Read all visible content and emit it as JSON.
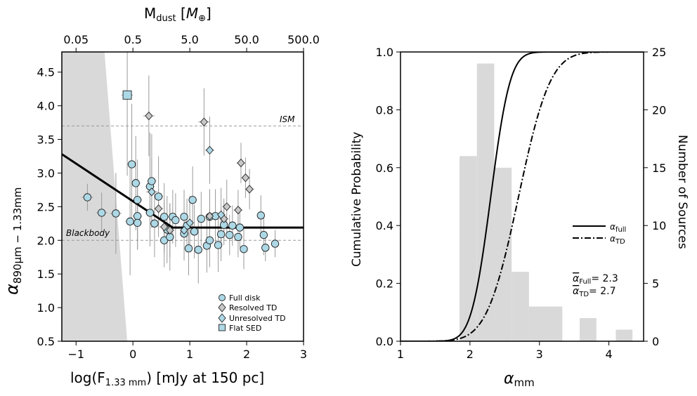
{
  "chart_data": [
    {
      "type": "scatter",
      "xlabel_html": [
        "log(F",
        "1.33 mm",
        ") [mJy at 150 pc]"
      ],
      "ylabel_parts": [
        "α",
        "890μm − 1.33mm"
      ],
      "top_xlabel_parts": [
        "M",
        "dust",
        " [",
        "M",
        "⊕",
        "]"
      ],
      "xlim": [
        -1.25,
        3.0
      ],
      "ylim": [
        0.5,
        4.8
      ],
      "xticks": [
        -1,
        0,
        1,
        2,
        3
      ],
      "xtick_labels": [
        "−1",
        "0",
        "1",
        "2",
        "3"
      ],
      "yticks": [
        0.5,
        1.0,
        1.5,
        2.0,
        2.5,
        3.0,
        3.5,
        4.0,
        4.5
      ],
      "ytick_labels": [
        "0.5",
        "1.0",
        "1.5",
        "2.0",
        "2.5",
        "3.0",
        "3.5",
        "4.0",
        "4.5"
      ],
      "top_ticks": [
        {
          "x": -1.0,
          "label": "0.05"
        },
        {
          "x": 0.0,
          "label": "0.5"
        },
        {
          "x": 1.0,
          "label": "5.0"
        },
        {
          "x": 2.0,
          "label": "50.0"
        },
        {
          "x": 3.0,
          "label": "500.0"
        }
      ],
      "reference_lines": [
        {
          "name": "ISM",
          "label": "ISM",
          "y": 3.7
        },
        {
          "name": "Blackbody",
          "label": "Blackbody",
          "y": 2.0
        }
      ],
      "excluded_region": [
        [
          -1.25,
          4.8
        ],
        [
          -0.5,
          4.8
        ],
        [
          -0.1,
          0.5
        ],
        [
          -1.25,
          0.5
        ]
      ],
      "fit_line": [
        [
          -1.25,
          3.28
        ],
        [
          0.7,
          2.19
        ],
        [
          3.0,
          2.19
        ]
      ],
      "legend": [
        {
          "label": "Full disk",
          "marker": "circle",
          "color": "#add8e6"
        },
        {
          "label": "Resolved TD",
          "marker": "diamond",
          "color": "#c8c8c8"
        },
        {
          "label": "Unresolved TD",
          "marker": "diamond",
          "color": "#add8e6"
        },
        {
          "label": "Flat SED",
          "marker": "square",
          "color": "#add8e6"
        }
      ],
      "series": [
        {
          "name": "Full disk",
          "points": [
            [
              -0.8,
              2.64,
              0.1,
              0.2
            ],
            [
              -0.55,
              2.41,
              0.1,
              0.3
            ],
            [
              -0.3,
              2.4,
              0.1,
              0.6
            ],
            [
              -0.05,
              2.28,
              0.08,
              0.8
            ],
            [
              -0.02,
              3.13,
              0.08,
              0.9
            ],
            [
              0.05,
              2.85,
              0.08,
              0.7
            ],
            [
              0.08,
              2.6,
              0.08,
              0.6
            ],
            [
              0.08,
              2.36,
              0.08,
              0.5
            ],
            [
              0.08,
              2.26,
              0.08,
              0.4
            ],
            [
              0.3,
              2.41,
              0.08,
              0.5
            ],
            [
              0.3,
              2.8,
              0.08,
              0.8
            ],
            [
              0.33,
              2.88,
              0.08,
              0.7
            ],
            [
              0.38,
              2.25,
              0.08,
              0.5
            ],
            [
              0.45,
              2.65,
              0.08,
              0.6
            ],
            [
              0.55,
              2.35,
              0.08,
              0.5
            ],
            [
              0.55,
              2.0,
              0.08,
              0.4
            ],
            [
              0.6,
              2.16,
              0.06,
              0.5
            ],
            [
              0.65,
              2.05,
              0.06,
              0.5
            ],
            [
              0.7,
              2.35,
              0.06,
              0.4
            ],
            [
              0.75,
              2.3,
              0.06,
              0.4
            ],
            [
              0.9,
              2.1,
              0.06,
              0.4
            ],
            [
              0.9,
              2.35,
              0.06,
              0.4
            ],
            [
              0.95,
              2.22,
              0.06,
              0.4
            ],
            [
              0.98,
              1.88,
              0.06,
              0.4
            ],
            [
              1.05,
              2.6,
              0.06,
              0.5
            ],
            [
              1.08,
              2.13,
              0.06,
              0.4
            ],
            [
              1.15,
              1.86,
              0.06,
              0.5
            ],
            [
              1.2,
              2.32,
              0.06,
              0.4
            ],
            [
              1.3,
              1.92,
              0.06,
              0.4
            ],
            [
              1.35,
              2.35,
              0.06,
              0.4
            ],
            [
              1.35,
              2.0,
              0.06,
              0.4
            ],
            [
              1.45,
              2.36,
              0.06,
              0.4
            ],
            [
              1.5,
              1.93,
              0.06,
              0.4
            ],
            [
              1.55,
              2.09,
              0.06,
              0.4
            ],
            [
              1.6,
              2.23,
              0.06,
              0.3
            ],
            [
              1.7,
              2.08,
              0.06,
              0.3
            ],
            [
              1.75,
              2.22,
              0.06,
              0.3
            ],
            [
              1.85,
              2.05,
              0.06,
              0.3
            ],
            [
              1.88,
              2.19,
              0.06,
              0.3
            ],
            [
              1.95,
              1.87,
              0.06,
              0.3
            ],
            [
              2.25,
              2.37,
              0.06,
              0.3
            ],
            [
              2.3,
              2.08,
              0.06,
              0.3
            ],
            [
              2.33,
              1.89,
              0.06,
              0.2
            ],
            [
              2.5,
              1.95,
              0.06,
              0.2
            ]
          ]
        },
        {
          "name": "Resolved TD",
          "points": [
            [
              0.28,
              3.85,
              0.1,
              0.6
            ],
            [
              1.25,
              3.76,
              0.1,
              0.5
            ],
            [
              1.35,
              2.36,
              0.08,
              0.4
            ],
            [
              0.55,
              2.2,
              0.08,
              0.4
            ],
            [
              0.65,
              2.15,
              0.08,
              0.4
            ],
            [
              1.65,
              2.5,
              0.08,
              0.4
            ],
            [
              1.85,
              2.45,
              0.08,
              0.3
            ],
            [
              1.9,
              3.15,
              0.08,
              0.3
            ],
            [
              1.98,
              2.93,
              0.08,
              0.3
            ],
            [
              2.05,
              2.76,
              0.08,
              0.3
            ],
            [
              1.6,
              2.32,
              0.08,
              0.3
            ],
            [
              0.45,
              2.47,
              0.08,
              0.3
            ]
          ]
        },
        {
          "name": "Unresolved TD",
          "points": [
            [
              0.33,
              2.72,
              0.1,
              0.5
            ],
            [
              1.0,
              2.26,
              0.08,
              0.4
            ],
            [
              1.35,
              3.34,
              0.08,
              0.5
            ],
            [
              1.55,
              2.38,
              0.08,
              0.4
            ],
            [
              0.9,
              2.15,
              0.08,
              0.3
            ]
          ]
        },
        {
          "name": "Flat SED",
          "points": [
            [
              -0.1,
              4.16,
              0.1,
              1.2
            ]
          ]
        }
      ]
    },
    {
      "type": "histogram+cdf",
      "xlabel_parts": [
        "α",
        "mm"
      ],
      "ylabel": "Cumulative Probability",
      "ylabel_right": "Number of Sources",
      "xlim": [
        1.0,
        4.5
      ],
      "ylim": [
        0.0,
        1.0
      ],
      "ylim_right": [
        0,
        25
      ],
      "xticks": [
        1,
        2,
        3,
        4
      ],
      "xtick_labels": [
        "1",
        "2",
        "3",
        "4"
      ],
      "yticks": [
        0.0,
        0.2,
        0.4,
        0.6,
        0.8,
        1.0
      ],
      "ytick_labels": [
        "0.0",
        "0.2",
        "0.4",
        "0.6",
        "0.8",
        "1.0"
      ],
      "yticks_right": [
        0,
        5,
        10,
        15,
        20,
        25
      ],
      "yticks_right_labels": [
        "0",
        "5",
        "10",
        "15",
        "20",
        "25"
      ],
      "histogram_bins": [
        {
          "x0": 1.85,
          "x1": 2.1,
          "count": 16
        },
        {
          "x0": 2.1,
          "x1": 2.35,
          "count": 24
        },
        {
          "x0": 2.35,
          "x1": 2.6,
          "count": 15
        },
        {
          "x0": 2.6,
          "x1": 2.85,
          "count": 6
        },
        {
          "x0": 2.85,
          "x1": 3.33,
          "count": 3
        },
        {
          "x0": 3.58,
          "x1": 3.82,
          "count": 2
        },
        {
          "x0": 4.1,
          "x1": 4.34,
          "count": 1
        }
      ],
      "curves": [
        {
          "name": "alpha_full",
          "label_parts": [
            "α",
            "full"
          ],
          "dash": "solid",
          "mu": 2.3,
          "sigma": 0.22
        },
        {
          "name": "alpha_td",
          "label_parts": [
            "α",
            "TD"
          ],
          "dash": "dashdot",
          "mu": 2.7,
          "sigma": 0.36
        }
      ],
      "annotations": [
        {
          "sym": "α",
          "sub": "Full",
          "text": "= 2.3"
        },
        {
          "sym": "α",
          "sub": "TD",
          "text": "= 2.7"
        }
      ]
    }
  ]
}
